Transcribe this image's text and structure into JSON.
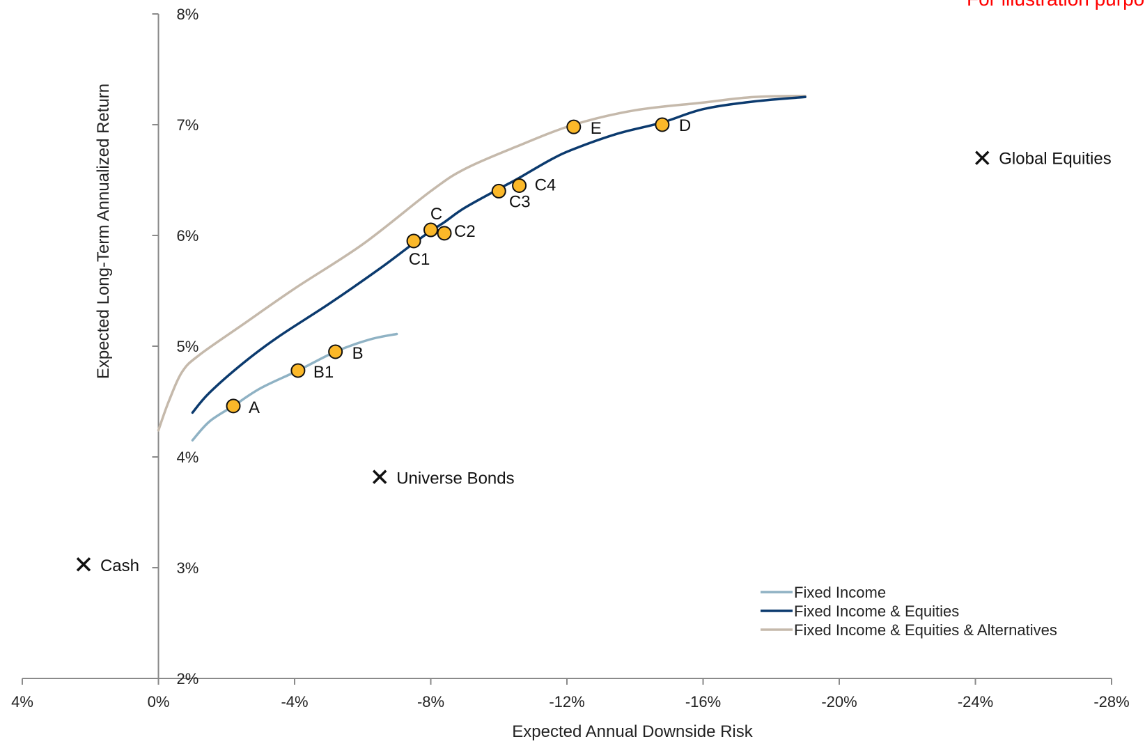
{
  "note": {
    "text": "For illustration purposes only",
    "color": "#ff0000"
  },
  "chart_data": {
    "type": "line",
    "title": "",
    "xlabel": "Expected Annual Downside Risk",
    "ylabel": "Expected Long-Term Annualized Return",
    "xlim": [
      4,
      -28
    ],
    "ylim": [
      2,
      8
    ],
    "x_ticks": [
      {
        "value": 4,
        "label": "4%"
      },
      {
        "value": 0,
        "label": "0%"
      },
      {
        "value": -4,
        "label": "-4%"
      },
      {
        "value": -8,
        "label": "-8%"
      },
      {
        "value": -12,
        "label": "-12%"
      },
      {
        "value": -16,
        "label": "-16%"
      },
      {
        "value": -20,
        "label": "-20%"
      },
      {
        "value": -24,
        "label": "-24%"
      },
      {
        "value": -28,
        "label": "-28%"
      }
    ],
    "y_ticks": [
      {
        "value": 2,
        "label": "2%"
      },
      {
        "value": 3,
        "label": "3%"
      },
      {
        "value": 4,
        "label": "4%"
      },
      {
        "value": 5,
        "label": "5%"
      },
      {
        "value": 6,
        "label": "6%"
      },
      {
        "value": 7,
        "label": "7%"
      },
      {
        "value": 8,
        "label": "8%"
      }
    ],
    "grid": false,
    "legend": "bottom-right",
    "series": [
      {
        "name": "Fixed Income",
        "color": "#8fb2c4",
        "x": [
          -1.0,
          -1.5,
          -2.2,
          -3.0,
          -4.1,
          -5.2,
          -6.2,
          -7.0
        ],
        "y": [
          4.15,
          4.32,
          4.46,
          4.62,
          4.78,
          4.95,
          5.06,
          5.11
        ]
      },
      {
        "name": "Fixed Income & Equities",
        "color": "#0b3a6e",
        "x": [
          -1.0,
          -1.5,
          -2.5,
          -3.5,
          -5.0,
          -6.5,
          -7.5,
          -8.0,
          -8.4,
          -9.0,
          -10.0,
          -10.6,
          -11.5,
          -12.2,
          -13.5,
          -14.8,
          -16.0,
          -17.5,
          -19.0
        ],
        "y": [
          4.4,
          4.58,
          4.85,
          5.08,
          5.38,
          5.7,
          5.93,
          6.04,
          6.12,
          6.25,
          6.42,
          6.52,
          6.68,
          6.78,
          6.92,
          7.02,
          7.14,
          7.21,
          7.25
        ]
      },
      {
        "name": "Fixed Income & Equities & Alternatives",
        "color": "#c5b9ab",
        "x": [
          0.0,
          -0.3,
          -0.7,
          -1.2,
          -2.5,
          -4.0,
          -6.0,
          -8.0,
          -9.0,
          -10.5,
          -12.2,
          -14.0,
          -16.0,
          -17.5,
          -19.0
        ],
        "y": [
          4.24,
          4.5,
          4.77,
          4.92,
          5.2,
          5.52,
          5.92,
          6.4,
          6.6,
          6.8,
          7.0,
          7.13,
          7.2,
          7.25,
          7.26
        ]
      }
    ],
    "portfolios": [
      {
        "label": "A",
        "x": -2.2,
        "y": 4.46,
        "color": "#fbb829"
      },
      {
        "label": "B1",
        "x": -4.1,
        "y": 4.78,
        "color": "#fbb829"
      },
      {
        "label": "B",
        "x": -5.2,
        "y": 4.95,
        "color": "#fbb829"
      },
      {
        "label": "C1",
        "x": -7.5,
        "y": 5.95,
        "color": "#fbb829"
      },
      {
        "label": "C",
        "x": -8.0,
        "y": 6.05,
        "color": "#fbb829"
      },
      {
        "label": "C2",
        "x": -8.4,
        "y": 6.02,
        "color": "#fbb829"
      },
      {
        "label": "C3",
        "x": -10.0,
        "y": 6.4,
        "color": "#fbb829"
      },
      {
        "label": "C4",
        "x": -10.6,
        "y": 6.45,
        "color": "#fbb829"
      },
      {
        "label": "E",
        "x": -12.2,
        "y": 6.98,
        "color": "#fbb829"
      },
      {
        "label": "D",
        "x": -14.8,
        "y": 7.0,
        "color": "#fbb829"
      }
    ],
    "benchmarks": [
      {
        "label": "Cash",
        "x": 2.2,
        "y": 3.03
      },
      {
        "label": "Universe Bonds",
        "x": -6.5,
        "y": 3.82
      },
      {
        "label": "Global Equities",
        "x": -24.2,
        "y": 6.7
      }
    ]
  }
}
